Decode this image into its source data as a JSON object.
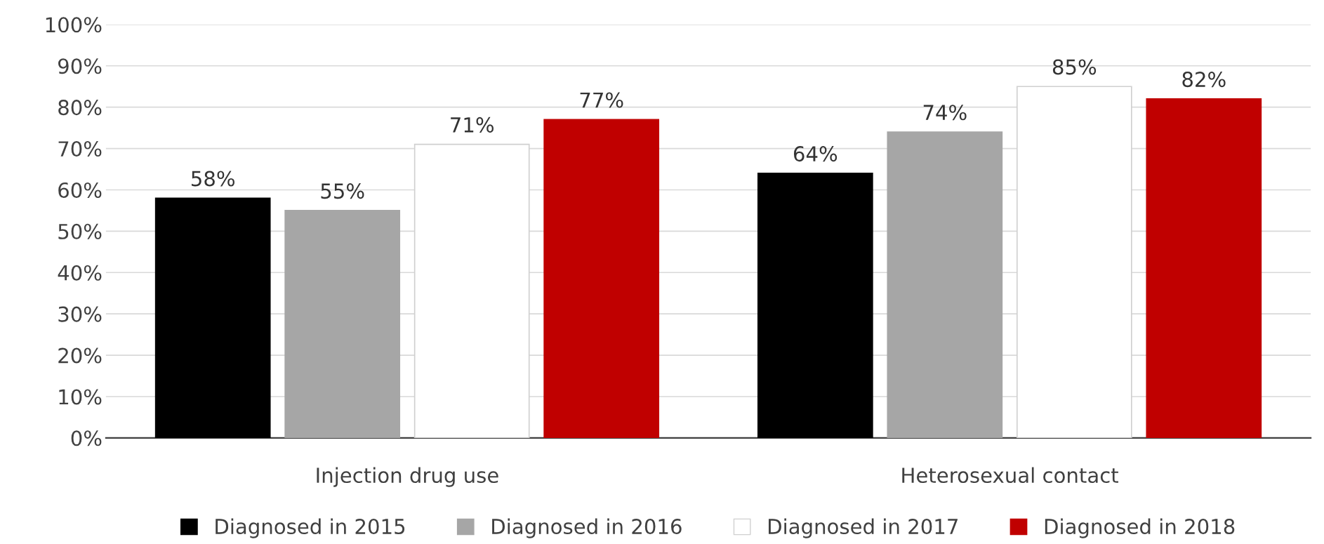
{
  "chart_data": {
    "type": "bar",
    "categories": [
      "Injection drug use",
      "Heterosexual contact"
    ],
    "series": [
      {
        "name": "Diagnosed in 2015",
        "color": "#000000",
        "values": [
          58,
          64
        ],
        "value_labels": [
          "58%",
          "64%"
        ]
      },
      {
        "name": "Diagnosed in 2016",
        "color": "#a6a6a6",
        "values": [
          55,
          74
        ],
        "value_labels": [
          "55%",
          "74%"
        ]
      },
      {
        "name": "Diagnosed in 2017",
        "color": "#ffffff",
        "values": [
          71,
          85
        ],
        "value_labels": [
          "71%",
          "85%"
        ]
      },
      {
        "name": "Diagnosed in 2018",
        "color": "#c00000",
        "values": [
          77,
          82
        ],
        "value_labels": [
          "77%",
          "82%"
        ]
      }
    ],
    "ylim": [
      0,
      100
    ],
    "yticks": [
      {
        "value": 0,
        "label": "0%"
      },
      {
        "value": 10,
        "label": "10%"
      },
      {
        "value": 20,
        "label": "20%"
      },
      {
        "value": 30,
        "label": "30%"
      },
      {
        "value": 40,
        "label": "40%"
      },
      {
        "value": 50,
        "label": "50%"
      },
      {
        "value": 60,
        "label": "60%"
      },
      {
        "value": 70,
        "label": "70%"
      },
      {
        "value": 80,
        "label": "80%"
      },
      {
        "value": 90,
        "label": "90%"
      },
      {
        "value": 100,
        "label": "100%"
      }
    ],
    "grid": "y",
    "legend": "bottom"
  }
}
